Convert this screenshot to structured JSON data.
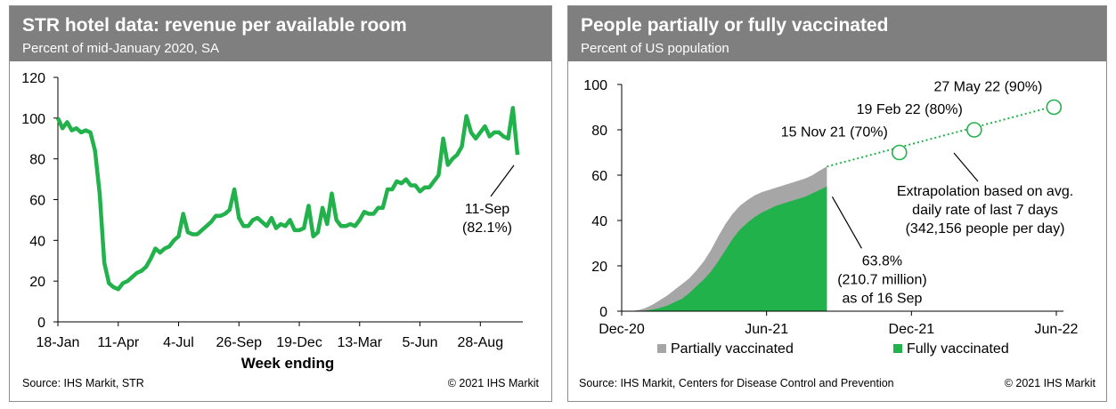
{
  "chart_data": [
    {
      "type": "line",
      "title": "STR hotel data: revenue per available room",
      "subtitle": "Percent of mid-January 2020, SA",
      "xlabel": "Week ending",
      "ylabel": "",
      "ylim": [
        0,
        120
      ],
      "yticks": [
        "0",
        "20",
        "40",
        "60",
        "80",
        "100",
        "120"
      ],
      "xticks": [
        "18-Jan",
        "11-Apr",
        "4-Jul",
        "26-Sep",
        "19-Dec",
        "13-Mar",
        "5-Jun",
        "28-Aug"
      ],
      "color": "#21b24b",
      "series": [
        {
          "name": "RevPAR",
          "values": [
            100,
            95,
            98,
            94,
            95,
            93,
            94,
            93,
            84,
            63,
            29,
            19,
            17,
            16,
            19,
            20,
            22,
            24,
            25,
            27,
            31,
            36,
            34,
            36,
            37,
            40,
            42,
            53,
            44,
            43,
            43,
            45,
            47,
            49,
            52,
            52,
            53,
            55,
            65,
            51,
            47,
            47,
            50,
            51,
            49,
            47,
            51,
            46,
            48,
            47,
            50,
            45,
            45,
            46,
            57,
            42,
            44,
            56,
            48,
            63,
            50,
            47,
            47,
            48,
            47,
            50,
            54,
            53,
            53,
            56,
            56,
            65,
            65,
            69,
            68,
            70,
            67,
            67,
            64,
            66,
            66,
            69,
            72,
            90,
            77,
            80,
            82,
            86,
            101,
            93,
            90,
            93,
            96,
            91,
            93,
            93,
            91,
            90,
            105,
            82
          ]
        }
      ],
      "annotations": [
        {
          "label": "11-Sep",
          "value_text": "(82.1%)",
          "x_index": 99,
          "value": 82.1
        }
      ],
      "source": "Source: IHS Markit, STR",
      "copyright": "© 2021 IHS Markit"
    },
    {
      "type": "area",
      "title": "People partially or fully vaccinated",
      "subtitle": "Percent of US population",
      "ylim": [
        0,
        100
      ],
      "xlim_months": [
        0,
        18
      ],
      "yticks": [
        "0",
        "20",
        "40",
        "60",
        "80",
        "100"
      ],
      "xticks": [
        {
          "label": "Dec-20",
          "month": 0
        },
        {
          "label": "Jun-21",
          "month": 6
        },
        {
          "label": "Dec-21",
          "month": 12
        },
        {
          "label": "Jun-22",
          "month": 18
        }
      ],
      "x_month": [
        0.35,
        0.7,
        1.0,
        1.3,
        1.6,
        1.9,
        2.2,
        2.5,
        2.8,
        3.1,
        3.4,
        3.7,
        4.0,
        4.3,
        4.6,
        4.9,
        5.2,
        5.5,
        5.8,
        6.1,
        6.4,
        6.7,
        7.0,
        7.3,
        7.6,
        7.9,
        8.2,
        8.5
      ],
      "series": [
        {
          "name": "Partially vaccinated",
          "color": "#a6a6a6",
          "values": [
            0,
            0.5,
            1.5,
            3,
            5,
            7,
            9.5,
            12,
            14.5,
            18,
            22,
            27,
            33,
            38.5,
            43,
            46.5,
            49,
            51,
            52.5,
            53.5,
            54.5,
            55.5,
            56.5,
            57.5,
            58.5,
            60,
            62,
            63.8
          ]
        },
        {
          "name": "Fully vaccinated",
          "color": "#21b24b",
          "values": [
            0,
            0,
            0.3,
            0.8,
            1.5,
            2.5,
            4,
            5.5,
            8,
            11,
            14,
            17.5,
            22,
            27,
            32,
            36,
            39,
            41.5,
            43.5,
            45,
            46.5,
            47.5,
            48.5,
            49.5,
            50.5,
            52,
            53.5,
            55
          ]
        }
      ],
      "extrapolation": {
        "color": "#21b24b",
        "start": {
          "month": 8.5,
          "value": 63.8
        },
        "end": {
          "month": 18.3,
          "value": 91.5
        },
        "milestones": [
          {
            "label": "15 Nov 21 (70%)",
            "month": 11.5,
            "value": 70
          },
          {
            "label": "19 Feb 22 (80%)",
            "month": 14.6,
            "value": 80
          },
          {
            "label": "27 May 22 (90%)",
            "month": 17.9,
            "value": 90
          }
        ],
        "note_lines": [
          "Extrapolation based on avg.",
          "daily rate of last 7 days",
          "(342,156 people per day)"
        ]
      },
      "current": {
        "lines": [
          "63.8%",
          "(210.7 million)",
          "as of 16 Sep"
        ],
        "month": 8.5,
        "value": 63.8
      },
      "legend": [
        {
          "name": "Partially vaccinated",
          "color": "#a6a6a6"
        },
        {
          "name": "Fully vaccinated",
          "color": "#21b24b"
        }
      ],
      "source": "Source: IHS Markit, Centers for Disease Control and Prevention",
      "copyright": "© 2021 IHS Markit"
    }
  ]
}
